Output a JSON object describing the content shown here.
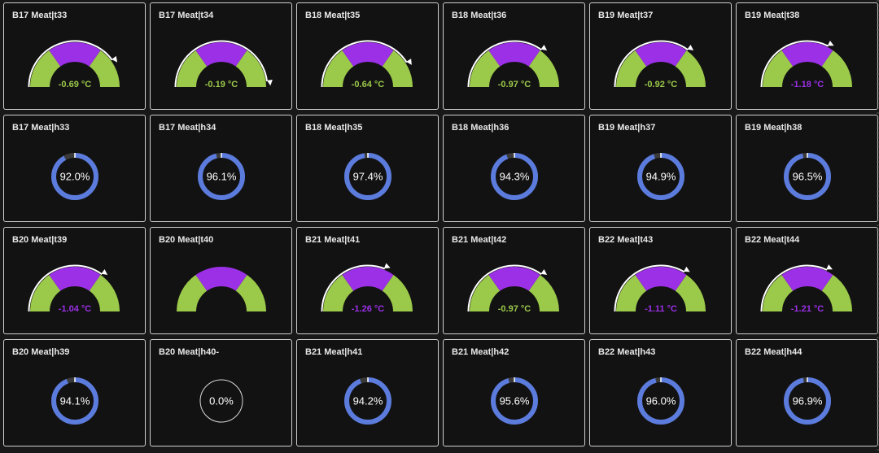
{
  "colors": {
    "panel_bg": "#121212",
    "border": "#cfcfcf",
    "title": "#e8e8e8",
    "gauge_green": "#9bc94a",
    "gauge_purple": "#9b30e6",
    "ring_blue": "#5b7bdd",
    "ring_text": "#ffffff",
    "ring_empty": "#d8d8d8"
  },
  "rows": [
    [
      {
        "type": "gauge",
        "title": "B17 Meat|t33",
        "value": "-0.69 °C",
        "level": 0.8,
        "color": "green"
      },
      {
        "type": "gauge",
        "title": "B17 Meat|t34",
        "value": "-0.19 °C",
        "level": 0.96,
        "color": "green"
      },
      {
        "type": "gauge",
        "title": "B18 Meat|t35",
        "value": "-0.64 °C",
        "level": 0.82,
        "color": "green"
      },
      {
        "type": "gauge",
        "title": "B18 Meat|t36",
        "value": "-0.97 °C",
        "level": 0.7,
        "color": "green"
      },
      {
        "type": "gauge",
        "title": "B19 Meat|t37",
        "value": "-0.92 °C",
        "level": 0.7,
        "color": "green"
      },
      {
        "type": "gauge",
        "title": "B19 Meat|t38",
        "value": "-1.18 °C",
        "level": 0.65,
        "color": "purple"
      }
    ],
    [
      {
        "type": "ring",
        "title": "B17 Meat|h33",
        "value": "92.0%",
        "fraction": 0.92
      },
      {
        "type": "ring",
        "title": "B17 Meat|h34",
        "value": "96.1%",
        "fraction": 0.961
      },
      {
        "type": "ring",
        "title": "B18 Meat|h35",
        "value": "97.4%",
        "fraction": 0.974
      },
      {
        "type": "ring",
        "title": "B18 Meat|h36",
        "value": "94.3%",
        "fraction": 0.943
      },
      {
        "type": "ring",
        "title": "B19 Meat|h37",
        "value": "94.9%",
        "fraction": 0.949
      },
      {
        "type": "ring",
        "title": "B19 Meat|h38",
        "value": "96.5%",
        "fraction": 0.965
      }
    ],
    [
      {
        "type": "gauge",
        "title": "B20 Meat|t39",
        "value": "-1.04 °C",
        "level": 0.7,
        "color": "purple"
      },
      {
        "type": "gauge",
        "title": "B20 Meat|t40",
        "value": "",
        "level": 0,
        "color": "purple"
      },
      {
        "type": "gauge",
        "title": "B21 Meat|t41",
        "value": "-1.26 °C",
        "level": 0.62,
        "color": "purple"
      },
      {
        "type": "gauge",
        "title": "B21 Meat|t42",
        "value": "-0.97 °C",
        "level": 0.7,
        "color": "green"
      },
      {
        "type": "gauge",
        "title": "B22 Meat|t43",
        "value": "-1.11 °C",
        "level": 0.67,
        "color": "purple"
      },
      {
        "type": "gauge",
        "title": "B22 Meat|t44",
        "value": "-1.21 °C",
        "level": 0.64,
        "color": "purple"
      }
    ],
    [
      {
        "type": "ring",
        "title": "B20 Meat|h39",
        "value": "94.1%",
        "fraction": 0.941
      },
      {
        "type": "ring",
        "title": "B20 Meat|h40-",
        "value": "0.0%",
        "fraction": 0
      },
      {
        "type": "ring",
        "title": "B21 Meat|h41",
        "value": "94.2%",
        "fraction": 0.942
      },
      {
        "type": "ring",
        "title": "B21 Meat|h42",
        "value": "95.6%",
        "fraction": 0.956
      },
      {
        "type": "ring",
        "title": "B22 Meat|h43",
        "value": "96.0%",
        "fraction": 0.96
      },
      {
        "type": "ring",
        "title": "B22 Meat|h44",
        "value": "96.9%",
        "fraction": 0.969
      }
    ]
  ]
}
